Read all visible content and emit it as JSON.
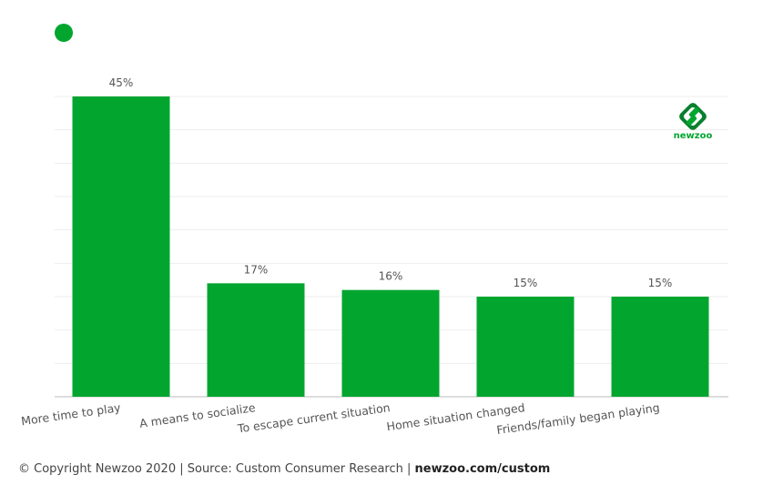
{
  "colors": {
    "bar": "#02A62F",
    "grid": "#eeeeee",
    "axis": "#bbbbbb",
    "text": "#555555"
  },
  "logo": {
    "text": "newzoo",
    "icon": "newzoo-logo-icon"
  },
  "footer": {
    "copyright": "© Copyright Newzoo 2020 | Source: Custom Consumer Research | ",
    "link": "newzoo.com/custom"
  },
  "chart_data": {
    "type": "bar",
    "categories": [
      "More time to play",
      "A means to socialize",
      "To escape current situation",
      "Home situation changed",
      "Friends/family began playing"
    ],
    "values": [
      45,
      17,
      16,
      15,
      15
    ],
    "value_labels": [
      "45%",
      "17%",
      "16%",
      "15%",
      "15%"
    ],
    "ylim": [
      0,
      45
    ],
    "grid": true,
    "legend": "top-left"
  }
}
